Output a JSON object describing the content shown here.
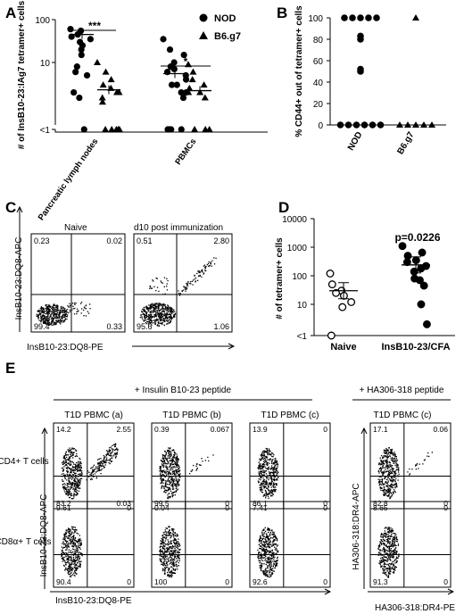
{
  "chart_data": [
    {
      "panel": "A",
      "type": "scatter",
      "ylabel": "# of InsB10-23:IAg7 tetramer+ cells",
      "y_ticks": [
        "<1",
        "10",
        "100"
      ],
      "categories": [
        "Pancreatic lymph nodes",
        "PBMCs"
      ],
      "legend": [
        {
          "name": "NOD",
          "marker": "circle"
        },
        {
          "name": "B6.g7",
          "marker": "triangle"
        }
      ],
      "series": [
        {
          "name": "NOD",
          "marker": "circle",
          "category": "Pancreatic lymph nodes",
          "values": [
            60,
            55,
            45,
            40,
            35,
            30,
            25,
            20,
            15,
            8,
            6,
            5,
            2,
            1.5,
            0.6
          ],
          "mean": 45
        },
        {
          "name": "B6.g7",
          "marker": "triangle",
          "category": "Pancreatic lymph nodes",
          "values": [
            10,
            6,
            4,
            3,
            2.5,
            2,
            2,
            1.5,
            1.2,
            0.6,
            0.6,
            0.6,
            0.6,
            0.6
          ],
          "mean": 2.3
        },
        {
          "name": "NOD",
          "marker": "circle",
          "category": "PBMCs",
          "values": [
            35,
            20,
            15,
            10,
            8,
            7,
            6,
            5,
            4,
            3,
            3,
            2,
            2,
            1.5,
            0.6,
            0.6,
            0.6,
            0.6
          ],
          "mean": 5.5
        },
        {
          "name": "B6.g7",
          "marker": "triangle",
          "category": "PBMCs",
          "values": [
            9,
            6,
            4,
            3,
            2.5,
            2,
            2,
            1.5,
            0.6,
            0.6,
            0.6
          ],
          "mean": 2.2
        }
      ],
      "significance": [
        "***",
        "*"
      ]
    },
    {
      "panel": "B",
      "type": "scatter",
      "ylabel": "% CD44+ out of tetramer+ cells",
      "ylim": [
        0,
        100
      ],
      "y_ticks": [
        "0",
        "20",
        "40",
        "60",
        "80",
        "100"
      ],
      "categories": [
        "NOD",
        "B6.g7"
      ],
      "series": [
        {
          "name": "NOD",
          "marker": "circle",
          "values": [
            100,
            100,
            100,
            100,
            100,
            83,
            80,
            52,
            50,
            0,
            0,
            0,
            0,
            0,
            0
          ]
        },
        {
          "name": "B6.g7",
          "marker": "triangle",
          "values": [
            100,
            0,
            0,
            0,
            0,
            0
          ]
        }
      ]
    },
    {
      "panel": "C",
      "type": "scatter",
      "ylabel": "InsB10-23:DQ8-APC",
      "xlabel": "InsB10-23:DQ8-PE",
      "plots": [
        {
          "title": "Naive",
          "quadrants": {
            "ul": "0.23",
            "ur": "0.02",
            "ll": "99.4",
            "lr": "0.33"
          }
        },
        {
          "title": "d10 post immunization",
          "quadrants": {
            "ul": "0.51",
            "ur": "2.80",
            "ll": "95.6",
            "lr": "1.06"
          }
        }
      ]
    },
    {
      "panel": "D",
      "type": "scatter",
      "ylabel": "# of tetramer+ cells",
      "y_ticks": [
        "<1",
        "10",
        "100",
        "1000",
        "10000"
      ],
      "categories": [
        "Naive",
        "InsB10-23/CFA"
      ],
      "annotation": "p=0.0226",
      "series": [
        {
          "name": "Naive",
          "marker": "open-circle",
          "values": [
            120,
            50,
            30,
            25,
            20,
            12,
            8,
            1
          ],
          "mean": 30
        },
        {
          "name": "InsB10-23/CFA",
          "marker": "filled-circle",
          "values": [
            1100,
            650,
            500,
            350,
            300,
            220,
            180,
            140,
            80,
            70,
            45,
            10,
            2
          ],
          "mean": 240
        }
      ]
    },
    {
      "panel": "E",
      "type": "scatter",
      "header_left": "+ Insulin B10-23 peptide",
      "header_right": "+ HA306-318 peptide",
      "row_labels": [
        "CD4+ T cells",
        "CD8α+ T cells"
      ],
      "ylabel_left": "InsB10-23:DQ8-APC",
      "xlabel_left": "InsB10-23:DQ8-PE",
      "ylabel_right": "HA306-318:DR4-APC",
      "xlabel_right": "HA306-318:DR4-PE",
      "columns": [
        {
          "title": "T1D PBMC (a)",
          "cd4": {
            "ul": "14.2",
            "ur": "2.55",
            "ll": "83.2",
            "lr": "0.03"
          },
          "cd8": {
            "ul": "9.61",
            "ur": "0",
            "ll": "90.4",
            "lr": "0"
          }
        },
        {
          "title": "T1D PBMC (b)",
          "cd4": {
            "ul": "0.39",
            "ur": "0.067",
            "ll": "99.5",
            "lr": "0"
          },
          "cd8": {
            "ul": "0.04",
            "ur": "0",
            "ll": "100",
            "lr": "0"
          }
        },
        {
          "title": "T1D PBMC (c)",
          "cd4": {
            "ul": "13.9",
            "ur": "0",
            "ll": "86.1",
            "lr": "0"
          },
          "cd8": {
            "ul": "7.41",
            "ur": "0",
            "ll": "92.6",
            "lr": "0"
          }
        },
        {
          "title": "T1D PBMC (c)",
          "cd4": {
            "ul": "17.1",
            "ur": "0.06",
            "ll": "82.8",
            "lr": "0"
          },
          "cd8": {
            "ul": "8.65",
            "ur": "0",
            "ll": "91.3",
            "lr": "0"
          }
        }
      ]
    }
  ],
  "panel_letters": [
    "A",
    "B",
    "C",
    "D",
    "E"
  ]
}
